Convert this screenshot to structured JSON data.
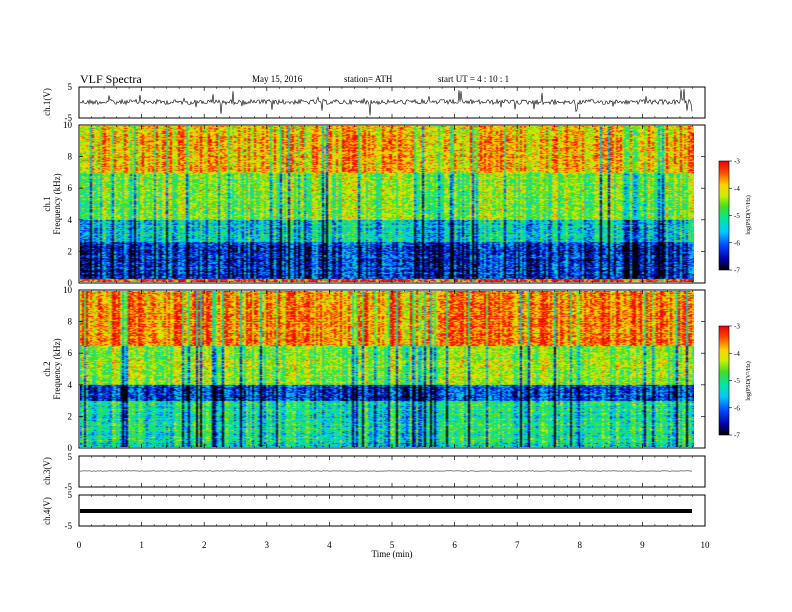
{
  "header": {
    "title": "VLF  Spectra",
    "date": "May 15, 2016",
    "station": "station= ATH",
    "start": "start  UT  =   4  : 10 : 1"
  },
  "colors": {
    "background": "#ffffff",
    "axis": "#000000",
    "colormap": [
      "#000000",
      "#0000aa",
      "#0044ff",
      "#00c8ff",
      "#00e89a",
      "#44dd22",
      "#c8f000",
      "#ffd400",
      "#ff4400",
      "#ee0000"
    ]
  },
  "chart_data": [
    {
      "type": "line",
      "panel": "ch1-waveform",
      "ylabel": "ch.1(V)",
      "ylim": [
        -5,
        5
      ],
      "yticks": [
        "5",
        "-5"
      ],
      "series_shape": "noisy waveform ~ -0.5 V to 0.5 V with sporadic spikes"
    },
    {
      "type": "heatmap",
      "panel": "ch1-spectrogram",
      "ylabel_line1": "ch.1",
      "ylabel_line2": "Frequency  (kHz)",
      "ylim": [
        0,
        10
      ],
      "yticks": [
        "0",
        "2",
        "4",
        "6",
        "8",
        "10"
      ],
      "colorbar": {
        "label": "log(PSD(V²/Hz)",
        "range": [
          -7,
          -3
        ],
        "ticks": [
          "-3",
          "-4",
          "-5",
          "-6",
          "-7"
        ]
      },
      "description_bands_kHz": {
        "dark_blue": [
          0.5,
          2.5
        ],
        "green_yellow": [
          3,
          7
        ],
        "red_orange": [
          7,
          10
        ]
      }
    },
    {
      "type": "heatmap",
      "panel": "ch2-spectrogram",
      "ylabel_line1": "ch.2",
      "ylabel_line2": "Frequency  (kHz)",
      "ylim": [
        0,
        10
      ],
      "yticks": [
        "0",
        "2",
        "4",
        "6",
        "8",
        "10"
      ],
      "colorbar": {
        "label": "log(PSD(V²/Hz)",
        "range": [
          -7,
          -3
        ],
        "ticks": [
          "-3",
          "-4",
          "-5",
          "-6",
          "-7"
        ]
      },
      "description_bands_kHz": {
        "dark_blue": [
          3,
          4
        ],
        "green_yellow": [
          0,
          7
        ],
        "red_orange": [
          6,
          10
        ]
      }
    },
    {
      "type": "line",
      "panel": "ch3-waveform",
      "ylabel": "ch.3(V)",
      "ylim": [
        -5,
        5
      ],
      "yticks": [
        "5",
        "-5"
      ],
      "series_shape": "nearly flat ~ 0 V"
    },
    {
      "type": "line",
      "panel": "ch4-waveform",
      "ylabel": "ch.4(V)",
      "ylim": [
        -5,
        5
      ],
      "yticks": [
        "5",
        "-5"
      ],
      "series_shape": "thick flat band at ~ 0 V"
    }
  ],
  "xaxis": {
    "label": "Time  (min)",
    "xlim": [
      0,
      10
    ],
    "ticks": [
      "0",
      "1",
      "2",
      "3",
      "4",
      "5",
      "6",
      "7",
      "8",
      "9",
      "10"
    ],
    "data_end_min": 9.8
  }
}
